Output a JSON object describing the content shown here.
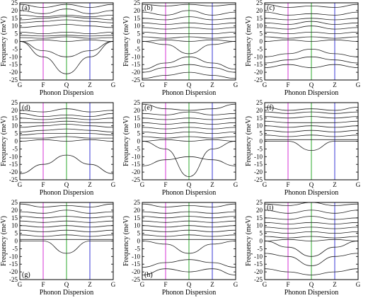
{
  "chart_data": [
    {
      "type": "line",
      "panel_label": "(a)",
      "xlabel": "Phonon Dispersion",
      "ylabel": "Frequency (meV)",
      "x_ticks": [
        "G",
        "F",
        "Q",
        "Z",
        "G"
      ],
      "ylim": [
        -25,
        25
      ],
      "y_ticks": [
        "25",
        "20",
        "15",
        "10",
        "5",
        "0",
        "-5",
        "-10",
        "-15",
        "-20",
        "-25"
      ],
      "grid": false,
      "vlines": [
        {
          "at": "F",
          "color": "#d633d6"
        },
        {
          "at": "Q",
          "color": "#2ea82e"
        },
        {
          "at": "Z",
          "color": "#3a3ad6"
        }
      ],
      "series": [
        {
          "values": [
            24,
            22,
            24,
            22,
            24
          ]
        },
        {
          "values": [
            20,
            18,
            21,
            18,
            20
          ]
        },
        {
          "values": [
            17,
            16,
            17,
            16,
            17
          ]
        },
        {
          "values": [
            14,
            15,
            16,
            15,
            14
          ]
        },
        {
          "values": [
            12,
            13,
            14,
            13,
            12
          ]
        },
        {
          "values": [
            9,
            10,
            11,
            10,
            9
          ]
        },
        {
          "values": [
            6,
            5,
            6,
            5,
            6
          ]
        },
        {
          "values": [
            4,
            3.5,
            4,
            3.5,
            4
          ]
        },
        {
          "values": [
            2.5,
            2,
            3,
            2,
            2.5
          ]
        },
        {
          "values": [
            0,
            1,
            0,
            1,
            0
          ]
        },
        {
          "values": [
            0,
            -6,
            -10,
            -6,
            0
          ]
        },
        {
          "values": [
            0,
            -10,
            -21,
            -10,
            0
          ]
        }
      ]
    },
    {
      "type": "line",
      "panel_label": "(b)",
      "xlabel": "Phonon Dispersion",
      "ylabel": "Frequency (meV)",
      "x_ticks": [
        "G",
        "F",
        "Q",
        "Z",
        "G"
      ],
      "ylim": [
        -25,
        25
      ],
      "y_ticks": [
        "25",
        "20",
        "15",
        "10",
        "5",
        "0",
        "-5",
        "-10",
        "-15",
        "-20",
        "-25"
      ],
      "grid": false,
      "vlines": [
        {
          "at": "F",
          "color": "#d633d6"
        },
        {
          "at": "Q",
          "color": "#2ea82e"
        },
        {
          "at": "Z",
          "color": "#3a3ad6"
        }
      ],
      "series": [
        {
          "values": [
            24,
            23,
            24,
            23,
            24
          ]
        },
        {
          "values": [
            19,
            17,
            20,
            17,
            19
          ]
        },
        {
          "values": [
            15,
            14,
            16,
            14,
            15
          ]
        },
        {
          "values": [
            12,
            11,
            12,
            11,
            12
          ]
        },
        {
          "values": [
            9,
            8,
            9,
            8,
            9
          ]
        },
        {
          "values": [
            6,
            5,
            5,
            5,
            6
          ]
        },
        {
          "values": [
            3,
            2,
            3,
            2,
            3
          ]
        },
        {
          "values": [
            0,
            1,
            0,
            1,
            0
          ]
        },
        {
          "values": [
            0,
            -2,
            -8,
            -2,
            0
          ]
        },
        {
          "values": [
            -18,
            -14,
            -10,
            -14,
            -18
          ]
        },
        {
          "values": [
            -20,
            -17,
            -15,
            -17,
            -20
          ]
        },
        {
          "values": [
            -24,
            -22,
            -20,
            -22,
            -24
          ]
        }
      ]
    },
    {
      "type": "line",
      "panel_label": "(c)",
      "xlabel": "Phonon Dispersion",
      "ylabel": "Frequency (meV)",
      "x_ticks": [
        "G",
        "F",
        "Q",
        "Z",
        "G"
      ],
      "ylim": [
        -25,
        25
      ],
      "y_ticks": [
        "25",
        "20",
        "15",
        "10",
        "5",
        "0",
        "-5",
        "-10",
        "-15",
        "-20",
        "-25"
      ],
      "grid": false,
      "vlines": [
        {
          "at": "F",
          "color": "#d633d6"
        },
        {
          "at": "Q",
          "color": "#2ea82e"
        },
        {
          "at": "Z",
          "color": "#3a3ad6"
        }
      ],
      "series": [
        {
          "values": [
            24,
            22,
            23,
            22,
            24
          ]
        },
        {
          "values": [
            19,
            17,
            18,
            17,
            19
          ]
        },
        {
          "values": [
            15,
            14,
            15,
            14,
            15
          ]
        },
        {
          "values": [
            12,
            11,
            13,
            11,
            12
          ]
        },
        {
          "values": [
            9,
            8,
            10,
            8,
            9
          ]
        },
        {
          "values": [
            6,
            5,
            6,
            5,
            6
          ]
        },
        {
          "values": [
            3,
            2,
            3,
            2,
            3
          ]
        },
        {
          "values": [
            0,
            1,
            0,
            1,
            0
          ]
        },
        {
          "values": [
            -10,
            -8,
            -5,
            -8,
            -10
          ]
        },
        {
          "values": [
            -14,
            -12,
            -10,
            -12,
            -14
          ]
        },
        {
          "values": [
            -17,
            -15,
            -17,
            -15,
            -17
          ]
        }
      ]
    },
    {
      "type": "line",
      "panel_label": "(d)",
      "xlabel": "Phonon Dispersion",
      "ylabel": "Frequency (meV)",
      "x_ticks": [
        "G",
        "F",
        "Q",
        "Z",
        "G"
      ],
      "ylim": [
        -25,
        25
      ],
      "y_ticks": [
        "25",
        "20",
        "15",
        "10",
        "5",
        "0",
        "-5",
        "-10",
        "-15",
        "-20",
        "-25"
      ],
      "grid": false,
      "vlines": [
        {
          "at": "F",
          "color": "#d633d6"
        },
        {
          "at": "Q",
          "color": "#2ea82e"
        },
        {
          "at": "Z",
          "color": "#3a3ad6"
        }
      ],
      "series": [
        {
          "values": [
            20,
            19,
            21,
            19,
            20
          ]
        },
        {
          "values": [
            18,
            16,
            17,
            16,
            18
          ]
        },
        {
          "values": [
            15,
            14,
            15,
            14,
            15
          ]
        },
        {
          "values": [
            12,
            12,
            13,
            12,
            12
          ]
        },
        {
          "values": [
            9,
            10,
            11,
            10,
            9
          ]
        },
        {
          "values": [
            6,
            7,
            8,
            7,
            6
          ]
        },
        {
          "values": [
            4,
            5,
            5,
            5,
            4
          ]
        },
        {
          "values": [
            2,
            2,
            3,
            2,
            2
          ]
        },
        {
          "values": [
            0,
            1,
            0,
            1,
            0
          ]
        },
        {
          "values": [
            -21,
            -15,
            -9,
            -15,
            -21
          ]
        }
      ]
    },
    {
      "type": "line",
      "panel_label": "(e)",
      "xlabel": "Phonon Dispersion",
      "ylabel": "Frequency (meV)",
      "x_ticks": [
        "G",
        "F",
        "Q",
        "Z",
        "G"
      ],
      "ylim": [
        -25,
        25
      ],
      "y_ticks": [
        "25",
        "20",
        "15",
        "10",
        "5",
        "0",
        "-5",
        "-10",
        "-15",
        "-20",
        "-25"
      ],
      "grid": false,
      "vlines": [
        {
          "at": "F",
          "color": "#d633d6"
        },
        {
          "at": "Q",
          "color": "#2ea82e"
        },
        {
          "at": "Z",
          "color": "#3a3ad6"
        }
      ],
      "series": [
        {
          "values": [
            24,
            21,
            20,
            21,
            24
          ]
        },
        {
          "values": [
            18,
            17,
            19,
            17,
            18
          ]
        },
        {
          "values": [
            15,
            14,
            15,
            14,
            15
          ]
        },
        {
          "values": [
            12,
            11,
            12,
            11,
            12
          ]
        },
        {
          "values": [
            9,
            8,
            9,
            8,
            9
          ]
        },
        {
          "values": [
            6,
            5,
            6,
            5,
            6
          ]
        },
        {
          "values": [
            3,
            2,
            3,
            2,
            3
          ]
        },
        {
          "values": [
            0,
            1,
            0,
            1,
            0
          ]
        },
        {
          "values": [
            0,
            -5,
            -23,
            -5,
            0
          ]
        },
        {
          "values": [
            -16,
            -12,
            -10,
            -12,
            -16
          ]
        }
      ]
    },
    {
      "type": "line",
      "panel_label": "(f)",
      "xlabel": "Phonon Dispersion",
      "ylabel": "Frequency (meV)",
      "x_ticks": [
        "G",
        "F",
        "Q",
        "Z",
        "G"
      ],
      "ylim": [
        -25,
        25
      ],
      "y_ticks": [
        "25",
        "20",
        "15",
        "10",
        "5",
        "0",
        "-5",
        "-10",
        "-15",
        "-20",
        "-25"
      ],
      "grid": false,
      "vlines": [
        {
          "at": "F",
          "color": "#d633d6"
        },
        {
          "at": "Q",
          "color": "#2ea82e"
        },
        {
          "at": "Z",
          "color": "#3a3ad6"
        }
      ],
      "series": [
        {
          "values": [
            22,
            20,
            21,
            20,
            22
          ]
        },
        {
          "values": [
            19,
            18,
            19,
            18,
            19
          ]
        },
        {
          "values": [
            16,
            15,
            16,
            15,
            16
          ]
        },
        {
          "values": [
            13,
            12,
            12,
            12,
            13
          ]
        },
        {
          "values": [
            10,
            9,
            10,
            9,
            10
          ]
        },
        {
          "values": [
            7,
            6,
            7,
            6,
            7
          ]
        },
        {
          "values": [
            4,
            3,
            4,
            3,
            4
          ]
        },
        {
          "values": [
            1,
            1,
            1,
            1,
            1
          ]
        },
        {
          "values": [
            0,
            0,
            -6,
            0,
            0
          ]
        }
      ]
    },
    {
      "type": "line",
      "panel_label": "(g)",
      "xlabel": "Phonon Dispersion",
      "ylabel": "Frequency (meV)",
      "x_ticks": [
        "G",
        "F",
        "Q",
        "Z",
        "G"
      ],
      "ylim": [
        -25,
        25
      ],
      "y_ticks": [
        "25",
        "20",
        "15",
        "10",
        "5",
        "0",
        "-5",
        "-10",
        "-15",
        "-20",
        "-25"
      ],
      "grid": false,
      "vlines": [
        {
          "at": "F",
          "color": "#d633d6"
        },
        {
          "at": "Q",
          "color": "#2ea82e"
        },
        {
          "at": "Z",
          "color": "#3a3ad6"
        }
      ],
      "series": [
        {
          "values": [
            24,
            22,
            23,
            22,
            24
          ]
        },
        {
          "values": [
            19,
            18,
            20,
            18,
            19
          ]
        },
        {
          "values": [
            16,
            15,
            16,
            15,
            16
          ]
        },
        {
          "values": [
            13,
            12,
            13,
            12,
            13
          ]
        },
        {
          "values": [
            10,
            9,
            10,
            9,
            10
          ]
        },
        {
          "values": [
            7,
            6,
            7,
            6,
            7
          ]
        },
        {
          "values": [
            4,
            3,
            4,
            3,
            4
          ]
        },
        {
          "values": [
            1,
            1,
            1,
            1,
            1
          ]
        },
        {
          "values": [
            0,
            0,
            -8,
            0,
            0
          ]
        }
      ]
    },
    {
      "type": "line",
      "panel_label": "(h)",
      "xlabel": "Phonon Dispersion",
      "ylabel": "Frequency (meV)",
      "x_ticks": [
        "G",
        "F",
        "Q",
        "Z",
        "G"
      ],
      "ylim": [
        -25,
        25
      ],
      "y_ticks": [
        "25",
        "20",
        "15",
        "10",
        "5",
        "0",
        "-5",
        "-10",
        "-15",
        "-20",
        "-25"
      ],
      "grid": false,
      "vlines": [
        {
          "at": "F",
          "color": "#d633d6"
        },
        {
          "at": "Q",
          "color": "#2ea82e"
        },
        {
          "at": "Z",
          "color": "#3a3ad6"
        }
      ],
      "series": [
        {
          "values": [
            24,
            22,
            23,
            22,
            24
          ]
        },
        {
          "values": [
            19,
            18,
            19,
            18,
            19
          ]
        },
        {
          "values": [
            16,
            15,
            16,
            15,
            16
          ]
        },
        {
          "values": [
            13,
            12,
            13,
            12,
            13
          ]
        },
        {
          "values": [
            10,
            9,
            10,
            9,
            10
          ]
        },
        {
          "values": [
            7,
            6,
            7,
            6,
            7
          ]
        },
        {
          "values": [
            4,
            3,
            4,
            3,
            4
          ]
        },
        {
          "values": [
            1,
            1,
            1,
            1,
            1
          ]
        },
        {
          "values": [
            0,
            -2,
            -8,
            -2,
            0
          ]
        },
        {
          "values": [
            -17,
            -14,
            -12,
            -14,
            -17
          ]
        },
        {
          "values": [
            -22,
            -18,
            -20,
            -18,
            -22
          ]
        }
      ]
    },
    {
      "type": "line",
      "panel_label": "(i)",
      "xlabel": "Phonon Dispersion",
      "ylabel": "Frequency (meV)",
      "x_ticks": [
        "G",
        "F",
        "Q",
        "Z",
        "G"
      ],
      "ylim": [
        -25,
        25
      ],
      "y_ticks": [
        "25",
        "20",
        "15",
        "10",
        "5",
        "0",
        "-5",
        "-10",
        "-15",
        "-20",
        "-25"
      ],
      "grid": false,
      "vlines": [
        {
          "at": "F",
          "color": "#d633d6"
        },
        {
          "at": "Q",
          "color": "#2ea82e"
        },
        {
          "at": "Z",
          "color": "#3a3ad6"
        }
      ],
      "series": [
        {
          "values": [
            24,
            23,
            25,
            23,
            24
          ]
        },
        {
          "values": [
            20,
            18,
            20,
            18,
            20
          ]
        },
        {
          "values": [
            15,
            14,
            16,
            14,
            15
          ]
        },
        {
          "values": [
            12,
            11,
            12,
            11,
            12
          ]
        },
        {
          "values": [
            9,
            8,
            9,
            8,
            9
          ]
        },
        {
          "values": [
            6,
            5,
            6,
            5,
            6
          ]
        },
        {
          "values": [
            3,
            2,
            3,
            2,
            3
          ]
        },
        {
          "values": [
            0,
            1,
            0,
            1,
            0
          ]
        },
        {
          "values": [
            0,
            -4,
            -10,
            -4,
            0
          ]
        },
        {
          "values": [
            -8,
            -10,
            -16,
            -10,
            -8
          ]
        },
        {
          "values": [
            -18,
            -20,
            -22,
            -20,
            -18
          ]
        }
      ]
    }
  ]
}
